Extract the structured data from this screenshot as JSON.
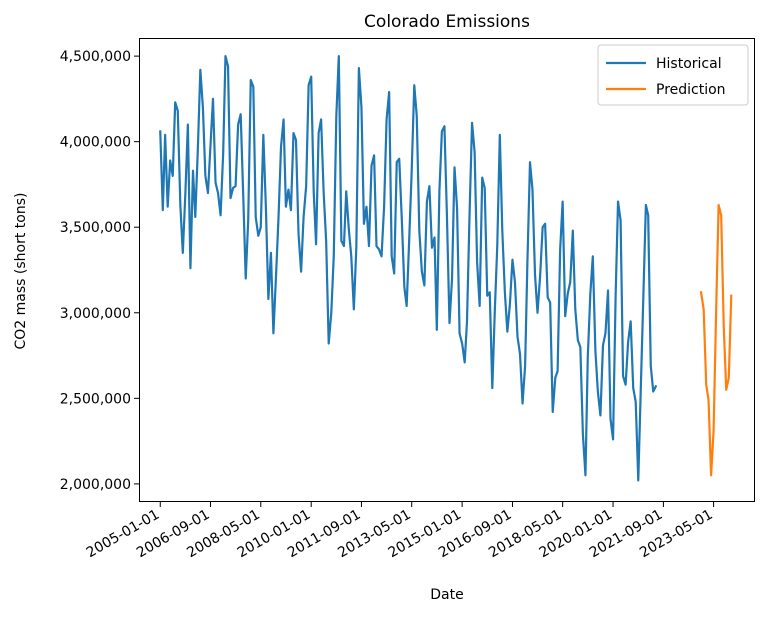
{
  "chart_data": {
    "type": "line",
    "title": "Colorado Emissions",
    "xlabel": "Date",
    "ylabel": "CO2 mass (short tons)",
    "xlim": [
      "2004-05-01",
      "2024-09-01"
    ],
    "ylim": [
      1900000,
      4600000
    ],
    "x_ticks": [
      "2005-01-01",
      "2006-09-01",
      "2008-05-01",
      "2010-01-01",
      "2011-09-01",
      "2013-05-01",
      "2015-01-01",
      "2016-09-01",
      "2018-05-01",
      "2020-01-01",
      "2021-09-01",
      "2023-05-01"
    ],
    "y_ticks": [
      2000000,
      2500000,
      3000000,
      3500000,
      4000000,
      4500000
    ],
    "y_tick_labels": [
      "2,000,000",
      "2,500,000",
      "3,000,000",
      "3,500,000",
      "4,000,000",
      "4,500,000"
    ],
    "grid": false,
    "legend_position": "top-right",
    "series": [
      {
        "name": "Historical",
        "color": "#1f77b4",
        "start": "2005-01",
        "values": [
          4060000,
          3600000,
          4040000,
          3620000,
          3890000,
          3800000,
          4230000,
          4180000,
          3630000,
          3350000,
          3700000,
          4100000,
          3260000,
          3830000,
          3560000,
          3960000,
          4420000,
          4200000,
          3800000,
          3700000,
          3980000,
          4250000,
          3760000,
          3700000,
          3570000,
          3930000,
          4500000,
          4440000,
          3670000,
          3730000,
          3740000,
          4100000,
          4160000,
          3700000,
          3200000,
          3540000,
          4360000,
          4320000,
          3560000,
          3450000,
          3500000,
          4040000,
          3630000,
          3080000,
          3350000,
          2880000,
          3210000,
          3550000,
          3970000,
          4130000,
          3620000,
          3720000,
          3600000,
          4050000,
          4010000,
          3460000,
          3240000,
          3560000,
          3740000,
          4330000,
          4380000,
          3700000,
          3400000,
          4050000,
          4130000,
          3700000,
          3420000,
          2820000,
          3000000,
          3330000,
          4150000,
          4500000,
          3420000,
          3390000,
          3710000,
          3490000,
          3330000,
          3020000,
          3380000,
          4430000,
          4200000,
          3520000,
          3620000,
          3390000,
          3860000,
          3920000,
          3390000,
          3370000,
          3330000,
          3620000,
          4130000,
          4290000,
          3330000,
          3230000,
          3880000,
          3900000,
          3550000,
          3150000,
          3040000,
          3430000,
          3830000,
          4330000,
          4150000,
          3480000,
          3240000,
          3160000,
          3650000,
          3740000,
          3380000,
          3440000,
          2900000,
          3710000,
          4060000,
          4090000,
          3570000,
          2940000,
          3200000,
          3850000,
          3610000,
          2880000,
          2820000,
          2710000,
          2950000,
          3580000,
          4110000,
          3940000,
          3300000,
          3040000,
          3790000,
          3730000,
          3100000,
          3120000,
          2560000,
          3020000,
          3390000,
          4040000,
          3480000,
          3120000,
          2890000,
          3050000,
          3310000,
          3180000,
          2860000,
          2760000,
          2470000,
          2690000,
          3300000,
          3880000,
          3720000,
          3220000,
          3000000,
          3210000,
          3500000,
          3520000,
          3090000,
          3060000,
          2420000,
          2620000,
          2660000,
          3370000,
          3650000,
          2980000,
          3110000,
          3180000,
          3480000,
          3020000,
          2840000,
          2800000,
          2290000,
          2050000,
          2740000,
          3110000,
          3330000,
          2780000,
          2540000,
          2400000,
          2810000,
          2880000,
          3130000,
          2380000,
          2260000,
          3100000,
          3650000,
          3540000,
          2630000,
          2580000,
          2830000,
          2950000,
          2560000,
          2480000,
          2020000,
          2550000,
          3090000,
          3630000,
          3570000,
          2690000,
          2540000,
          2570000
        ]
      },
      {
        "name": "Prediction",
        "color": "#ff7f0e",
        "start": "2022-12",
        "values": [
          3120000,
          3020000,
          2580000,
          2490000,
          2050000,
          2310000,
          3010000,
          3630000,
          3570000,
          2920000,
          2550000,
          2620000,
          3100000
        ]
      }
    ]
  }
}
